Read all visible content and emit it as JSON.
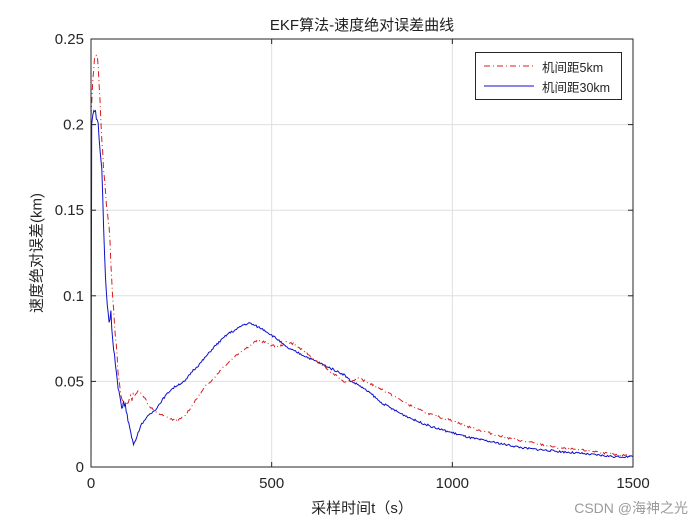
{
  "chart_data": {
    "type": "line",
    "title": "EKF算法-速度绝对误差曲线",
    "xlabel": "采样时间t（s）",
    "ylabel": "速度绝对误差(km)",
    "xlim": [
      0,
      1500
    ],
    "ylim": [
      0,
      0.25
    ],
    "xticks": [
      0,
      500,
      1000,
      1500
    ],
    "yticks": [
      0,
      0.05,
      0.1,
      0.15,
      0.2,
      0.25
    ],
    "xtick_labels": [
      "0",
      "500",
      "1000",
      "1500"
    ],
    "ytick_labels": [
      "0",
      "0.05",
      "0.1",
      "0.15",
      "0.2",
      "0.25"
    ],
    "grid": true,
    "legend_position": "upper right",
    "series": [
      {
        "name": "机间距5km",
        "color": "#d62020",
        "style": "dash-dot",
        "x": [
          0,
          5,
          10,
          15,
          20,
          25,
          30,
          35,
          40,
          45,
          50,
          55,
          60,
          65,
          70,
          75,
          80,
          85,
          90,
          100,
          110,
          120,
          130,
          140,
          150,
          160,
          180,
          200,
          220,
          240,
          260,
          280,
          300,
          320,
          340,
          360,
          380,
          400,
          420,
          440,
          460,
          480,
          500,
          520,
          540,
          560,
          580,
          600,
          620,
          640,
          660,
          680,
          700,
          720,
          740,
          760,
          780,
          800,
          850,
          900,
          950,
          1000,
          1050,
          1100,
          1150,
          1200,
          1250,
          1300,
          1350,
          1400,
          1450,
          1500
        ],
        "y": [
          0.205,
          0.225,
          0.238,
          0.242,
          0.235,
          0.215,
          0.19,
          0.175,
          0.16,
          0.15,
          0.14,
          0.12,
          0.1,
          0.085,
          0.07,
          0.055,
          0.045,
          0.04,
          0.036,
          0.038,
          0.04,
          0.042,
          0.044,
          0.043,
          0.04,
          0.036,
          0.032,
          0.03,
          0.028,
          0.027,
          0.03,
          0.036,
          0.042,
          0.048,
          0.052,
          0.057,
          0.061,
          0.065,
          0.068,
          0.071,
          0.074,
          0.073,
          0.071,
          0.07,
          0.073,
          0.072,
          0.069,
          0.066,
          0.062,
          0.06,
          0.056,
          0.053,
          0.05,
          0.05,
          0.052,
          0.05,
          0.048,
          0.046,
          0.04,
          0.034,
          0.03,
          0.027,
          0.023,
          0.02,
          0.017,
          0.015,
          0.013,
          0.011,
          0.01,
          0.009,
          0.007,
          0.007
        ]
      },
      {
        "name": "机间距30km",
        "color": "#1010c8",
        "style": "solid",
        "x": [
          0,
          2,
          5,
          8,
          10,
          15,
          20,
          25,
          30,
          35,
          40,
          45,
          50,
          55,
          60,
          65,
          70,
          75,
          80,
          85,
          90,
          95,
          100,
          105,
          110,
          115,
          120,
          130,
          140,
          150,
          160,
          180,
          200,
          220,
          240,
          260,
          280,
          300,
          320,
          340,
          360,
          380,
          400,
          420,
          440,
          460,
          480,
          500,
          520,
          540,
          560,
          580,
          600,
          620,
          640,
          660,
          680,
          700,
          720,
          740,
          760,
          780,
          800,
          850,
          900,
          950,
          1000,
          1050,
          1100,
          1150,
          1200,
          1250,
          1300,
          1350,
          1400,
          1450,
          1500
        ],
        "y": [
          0,
          0.2,
          0.205,
          0.21,
          0.208,
          0.205,
          0.2,
          0.185,
          0.175,
          0.14,
          0.11,
          0.095,
          0.085,
          0.09,
          0.075,
          0.065,
          0.055,
          0.045,
          0.04,
          0.035,
          0.038,
          0.035,
          0.032,
          0.025,
          0.02,
          0.015,
          0.014,
          0.02,
          0.025,
          0.028,
          0.03,
          0.034,
          0.04,
          0.045,
          0.048,
          0.05,
          0.056,
          0.06,
          0.065,
          0.07,
          0.074,
          0.078,
          0.08,
          0.083,
          0.084,
          0.082,
          0.08,
          0.077,
          0.074,
          0.07,
          0.068,
          0.066,
          0.064,
          0.062,
          0.06,
          0.058,
          0.056,
          0.054,
          0.05,
          0.048,
          0.045,
          0.042,
          0.038,
          0.032,
          0.027,
          0.023,
          0.02,
          0.017,
          0.015,
          0.013,
          0.011,
          0.01,
          0.009,
          0.008,
          0.007,
          0.006,
          0.006
        ]
      }
    ]
  },
  "watermark": "CSDN @海神之光"
}
